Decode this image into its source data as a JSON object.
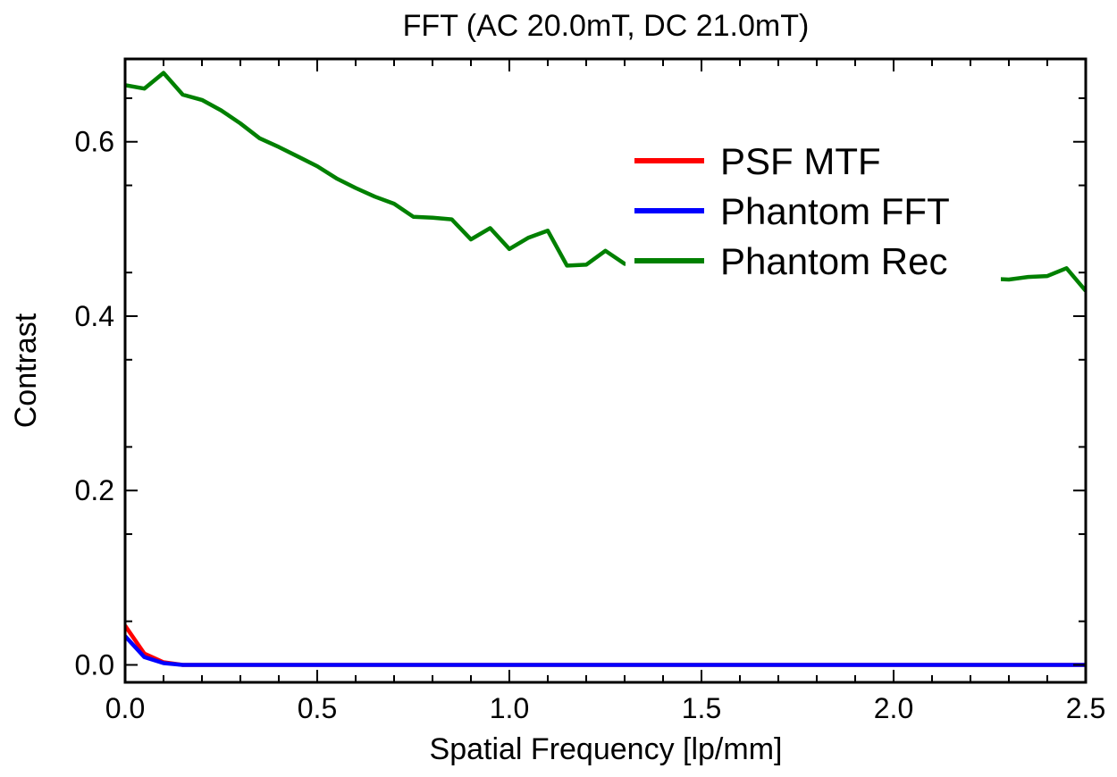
{
  "chart_data": {
    "type": "line",
    "title": "FFT (AC 20.0mT, DC 21.0mT)",
    "xlabel": "Spatial Frequency [lp/mm]",
    "ylabel": "Contrast",
    "xlim": [
      0.0,
      2.5
    ],
    "ylim": [
      -0.02,
      0.695
    ],
    "xticks": [
      0.0,
      0.5,
      1.0,
      1.5,
      2.0,
      2.5
    ],
    "xtick_labels": [
      "0.0",
      "0.5",
      "1.0",
      "1.5",
      "2.0",
      "2.5"
    ],
    "yticks": [
      0.0,
      0.2,
      0.4,
      0.6
    ],
    "ytick_labels": [
      "0.0",
      "0.2",
      "0.4",
      "0.6"
    ],
    "grid": false,
    "legend_position": "top-right",
    "series": [
      {
        "name": "PSF MTF",
        "color": "#ff0000",
        "x": [
          0.0,
          0.05,
          0.1,
          0.15,
          0.2,
          0.5,
          1.0,
          1.5,
          2.0,
          2.5
        ],
        "y": [
          0.045,
          0.013,
          0.003,
          0.0,
          0.0,
          0.0,
          0.0,
          0.0,
          0.0,
          0.0
        ]
      },
      {
        "name": "Phantom FFT",
        "color": "#0000ff",
        "x": [
          0.0,
          0.05,
          0.1,
          0.15,
          0.2,
          0.5,
          1.0,
          1.5,
          2.0,
          2.5
        ],
        "y": [
          0.033,
          0.009,
          0.002,
          0.0,
          0.0,
          0.0,
          0.0,
          0.0,
          0.0,
          0.0
        ]
      },
      {
        "name": "Phantom Rec",
        "color": "#008000",
        "x": [
          0.0,
          0.05,
          0.1,
          0.15,
          0.2,
          0.25,
          0.3,
          0.35,
          0.4,
          0.45,
          0.5,
          0.55,
          0.6,
          0.65,
          0.7,
          0.75,
          0.8,
          0.85,
          0.9,
          0.95,
          1.0,
          1.05,
          1.1,
          1.15,
          1.2,
          1.25,
          1.3,
          1.35,
          1.4,
          1.45,
          1.5,
          1.55,
          1.6,
          1.65,
          1.7,
          1.75,
          1.8,
          1.85,
          1.9,
          1.95,
          2.0,
          2.05,
          2.1,
          2.15,
          2.2,
          2.25,
          2.3,
          2.35,
          2.4,
          2.45,
          2.5
        ],
        "y": [
          0.665,
          0.661,
          0.679,
          0.654,
          0.648,
          0.636,
          0.621,
          0.604,
          0.594,
          0.583,
          0.572,
          0.558,
          0.547,
          0.537,
          0.529,
          0.514,
          0.513,
          0.511,
          0.488,
          0.501,
          0.477,
          0.49,
          0.498,
          0.458,
          0.459,
          0.475,
          0.46,
          0.458,
          0.456,
          0.455,
          0.454,
          0.453,
          0.452,
          0.451,
          0.45,
          0.449,
          0.449,
          0.448,
          0.447,
          0.447,
          0.446,
          0.446,
          0.445,
          0.445,
          0.444,
          0.443,
          0.442,
          0.445,
          0.446,
          0.455,
          0.429
        ]
      }
    ]
  }
}
